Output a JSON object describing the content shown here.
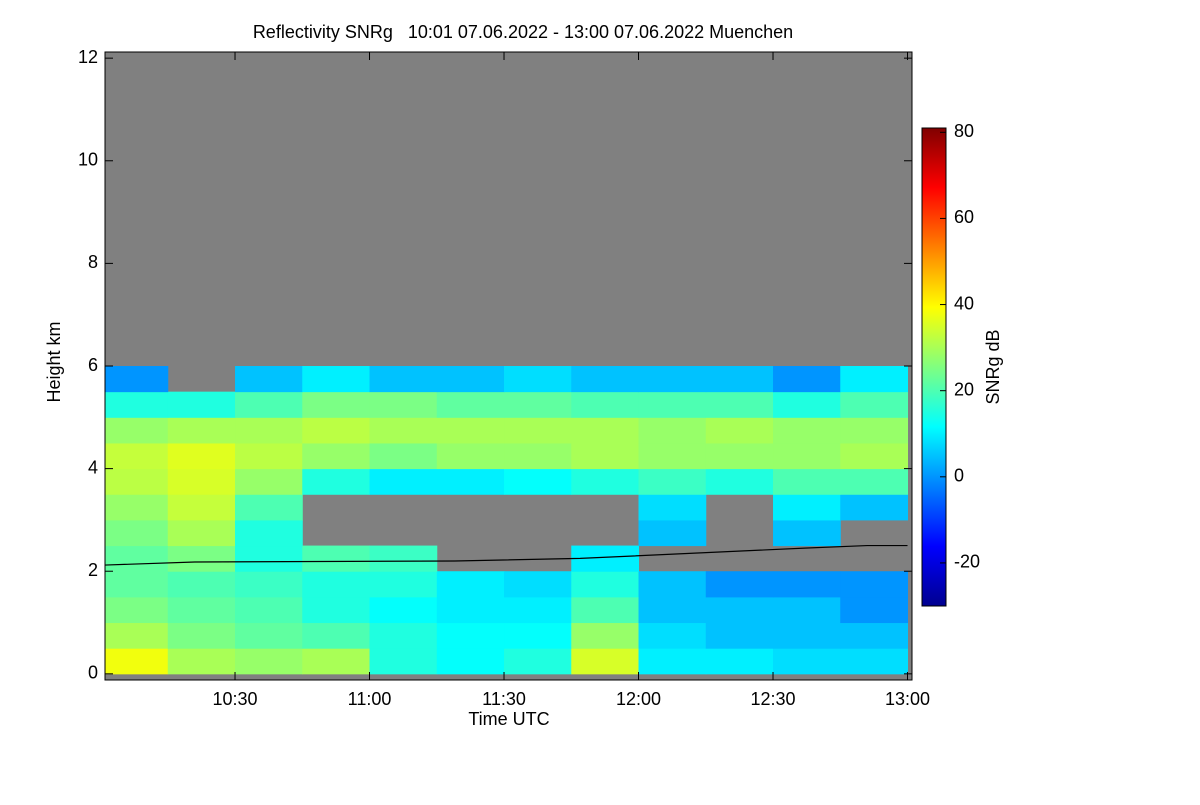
{
  "chart_data": {
    "type": "heatmap",
    "title": "Reflectivity SNRg   10:01 07.06.2022 - 13:00 07.06.2022 Muenchen",
    "x_label": "Time UTC",
    "y_label": "Height km",
    "colorbar_label": "SNRg dB",
    "xlim": [
      601,
      781
    ],
    "xticks": [
      {
        "value": 630,
        "label": "10:30"
      },
      {
        "value": 660,
        "label": "11:00"
      },
      {
        "value": 690,
        "label": "11:30"
      },
      {
        "value": 720,
        "label": "12:00"
      },
      {
        "value": 750,
        "label": "12:30"
      },
      {
        "value": 780,
        "label": "13:00"
      }
    ],
    "ylim": [
      -0.12,
      12.12
    ],
    "yticks": [
      0,
      2,
      4,
      6,
      8,
      10,
      12
    ],
    "clim": [
      -30,
      81
    ],
    "cticks": [
      -20,
      0,
      20,
      40,
      60,
      80
    ],
    "colormap": [
      "#00008f",
      "#0000ff",
      "#0080ff",
      "#00ffff",
      "#80ff80",
      "#ffff00",
      "#ff8000",
      "#ff0000",
      "#800000"
    ],
    "null_color": "#808080",
    "x_edges": [
      601,
      615,
      630,
      645,
      660,
      675,
      690,
      705,
      720,
      735,
      750,
      765,
      780
    ],
    "y_edges": [
      0,
      0.5,
      1,
      1.5,
      2,
      2.5,
      3,
      3.5,
      4,
      4.5,
      5,
      5.5,
      6,
      6.5
    ],
    "z": [
      [
        38,
        30,
        28,
        30,
        15,
        12,
        15,
        35,
        10,
        10,
        8,
        8
      ],
      [
        30,
        25,
        22,
        20,
        15,
        12,
        12,
        28,
        8,
        5,
        5,
        5
      ],
      [
        25,
        22,
        20,
        15,
        12,
        10,
        10,
        20,
        5,
        5,
        5,
        0
      ],
      [
        22,
        20,
        18,
        15,
        15,
        10,
        8,
        15,
        5,
        0,
        0,
        0
      ],
      [
        22,
        25,
        15,
        20,
        18,
        null,
        null,
        10,
        null,
        null,
        null,
        null
      ],
      [
        25,
        30,
        15,
        null,
        null,
        null,
        null,
        null,
        5,
        null,
        5,
        null
      ],
      [
        28,
        33,
        20,
        null,
        null,
        null,
        null,
        null,
        8,
        null,
        10,
        5
      ],
      [
        32,
        35,
        28,
        15,
        10,
        10,
        12,
        15,
        18,
        15,
        20,
        20
      ],
      [
        33,
        36,
        32,
        28,
        25,
        28,
        28,
        30,
        28,
        28,
        28,
        30
      ],
      [
        28,
        30,
        30,
        32,
        30,
        30,
        30,
        30,
        28,
        30,
        28,
        28
      ],
      [
        15,
        15,
        20,
        25,
        25,
        22,
        22,
        20,
        20,
        20,
        15,
        20
      ],
      [
        0,
        null,
        5,
        10,
        5,
        5,
        8,
        5,
        5,
        5,
        0,
        10
      ],
      [
        null,
        null,
        null,
        null,
        null,
        null,
        null,
        null,
        null,
        null,
        null,
        null
      ]
    ],
    "line": {
      "color": "#000000",
      "x": [
        601,
        621,
        679,
        707,
        757,
        771,
        780
      ],
      "y": [
        2.12,
        2.18,
        2.2,
        2.25,
        2.45,
        2.5,
        2.5
      ]
    }
  }
}
